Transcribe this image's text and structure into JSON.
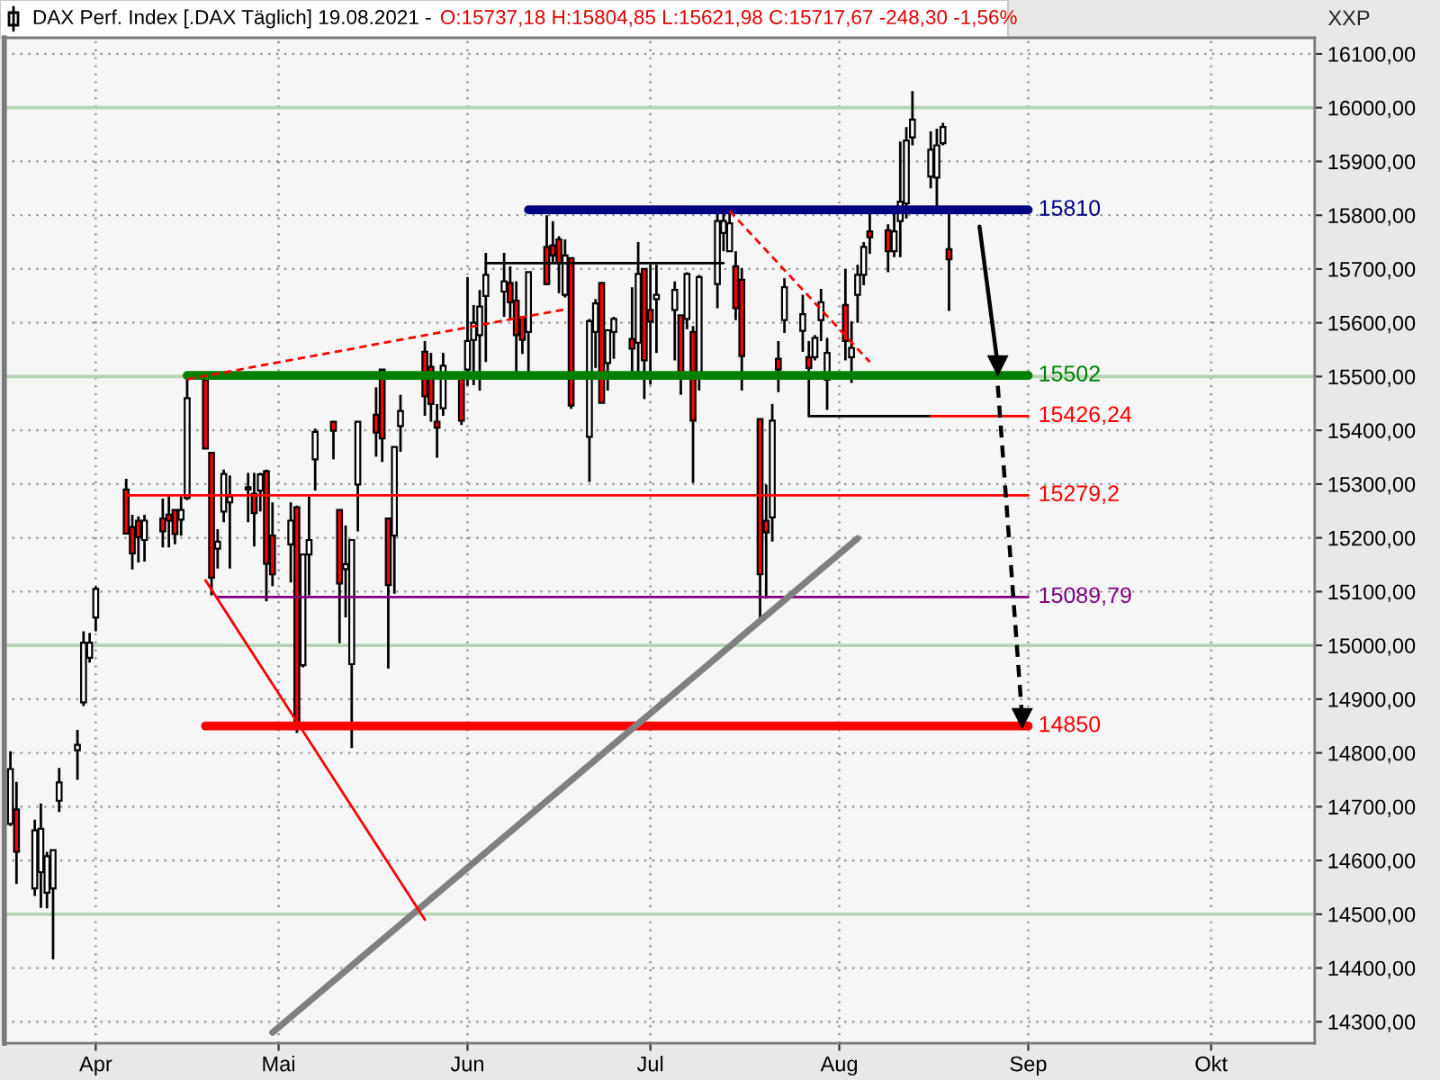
{
  "chart_data": {
    "type": "candlestick",
    "title": "DAX Perf. Index [.DAX Täglich] 19.08.2021 -",
    "subtitle": "O:15737,18 H:15804,85 L:15621,98 C:15717,67 -248,30 -1,56%",
    "ylabel": "XXP",
    "x": [
      "2021-03-18",
      "2021-03-19",
      "2021-03-22",
      "2021-03-23",
      "2021-03-24",
      "2021-03-25",
      "2021-03-26",
      "2021-03-29",
      "2021-03-30",
      "2021-03-31",
      "2021-04-01",
      "2021-04-06",
      "2021-04-07",
      "2021-04-08",
      "2021-04-09",
      "2021-04-12",
      "2021-04-13",
      "2021-04-14",
      "2021-04-15",
      "2021-04-16",
      "2021-04-19",
      "2021-04-20",
      "2021-04-21",
      "2021-04-22",
      "2021-04-23",
      "2021-04-26",
      "2021-04-27",
      "2021-04-28",
      "2021-04-29",
      "2021-04-30",
      "2021-05-03",
      "2021-05-04",
      "2021-05-05",
      "2021-05-06",
      "2021-05-07",
      "2021-05-10",
      "2021-05-11",
      "2021-05-12",
      "2021-05-13",
      "2021-05-14",
      "2021-05-17",
      "2021-05-18",
      "2021-05-19",
      "2021-05-20",
      "2021-05-21",
      "2021-05-25",
      "2021-05-26",
      "2021-05-27",
      "2021-05-28",
      "2021-05-31",
      "2021-06-01",
      "2021-06-02",
      "2021-06-03",
      "2021-06-04",
      "2021-06-07",
      "2021-06-08",
      "2021-06-09",
      "2021-06-10",
      "2021-06-11",
      "2021-06-14",
      "2021-06-15",
      "2021-06-16",
      "2021-06-17",
      "2021-06-18",
      "2021-06-21",
      "2021-06-22",
      "2021-06-23",
      "2021-06-24",
      "2021-06-25",
      "2021-06-28",
      "2021-06-29",
      "2021-06-30",
      "2021-07-01",
      "2021-07-02",
      "2021-07-05",
      "2021-07-06",
      "2021-07-07",
      "2021-07-08",
      "2021-07-09",
      "2021-07-12",
      "2021-07-13",
      "2021-07-14",
      "2021-07-15",
      "2021-07-16",
      "2021-07-19",
      "2021-07-20",
      "2021-07-21",
      "2021-07-22",
      "2021-07-23",
      "2021-07-26",
      "2021-07-27",
      "2021-07-28",
      "2021-07-29",
      "2021-07-30",
      "2021-08-02",
      "2021-08-03",
      "2021-08-04",
      "2021-08-05",
      "2021-08-06",
      "2021-08-09",
      "2021-08-10",
      "2021-08-11",
      "2021-08-12",
      "2021-08-13",
      "2021-08-16",
      "2021-08-17",
      "2021-08-18",
      "2021-08-19"
    ],
    "ohlc": [
      [
        14668,
        14803,
        14664,
        14770
      ],
      [
        14695,
        14746,
        14556,
        14616
      ],
      [
        14548,
        14676,
        14534,
        14656
      ],
      [
        14578,
        14706,
        14512,
        14659
      ],
      [
        14540,
        14616,
        14511,
        14608
      ],
      [
        14548,
        14619,
        14416,
        14619
      ],
      [
        14711,
        14772,
        14690,
        14745
      ],
      [
        14805,
        14843,
        14750,
        14815
      ],
      [
        14894,
        15026,
        14887,
        15005
      ],
      [
        14977,
        15023,
        14968,
        15005
      ],
      [
        15052,
        15110,
        15026,
        15105
      ],
      [
        15290,
        15310,
        15207,
        15208
      ],
      [
        15220,
        15243,
        15141,
        15171
      ],
      [
        15232,
        15240,
        15154,
        15201
      ],
      [
        15196,
        15243,
        15156,
        15232
      ],
      [
        15236,
        15273,
        15182,
        15212
      ],
      [
        15243,
        15277,
        15182,
        15232
      ],
      [
        15252,
        15252,
        15188,
        15207
      ],
      [
        15234,
        15277,
        15204,
        15252
      ],
      [
        15274,
        15502,
        15270,
        15460
      ],
      [
        15494,
        15502,
        15366,
        15366
      ],
      [
        15358,
        15358,
        15093,
        15126
      ],
      [
        15180,
        15216,
        15143,
        15193
      ],
      [
        15249,
        15327,
        15229,
        15319
      ],
      [
        15266,
        15316,
        15143,
        15277
      ],
      [
        15294,
        15321,
        15229,
        15290
      ],
      [
        15282,
        15321,
        15184,
        15246
      ],
      [
        15288,
        15321,
        15249,
        15318
      ],
      [
        15324,
        15327,
        15082,
        15152
      ],
      [
        15204,
        15266,
        15110,
        15132
      ],
      [
        15188,
        15266,
        15117,
        15232
      ],
      [
        15257,
        15260,
        14837,
        14854
      ],
      [
        14963,
        15169,
        14959,
        15169
      ],
      [
        15169,
        15277,
        15093,
        15196
      ],
      [
        15346,
        15403,
        15288,
        15397
      ],
      [
        15416,
        15416,
        15346,
        15399
      ],
      [
        15252,
        15252,
        15004,
        15115
      ],
      [
        15142,
        15223,
        15052,
        15151
      ],
      [
        14965,
        15196,
        14809,
        15196
      ],
      [
        15299,
        15416,
        15212,
        15416
      ],
      [
        15429,
        15480,
        15351,
        15396
      ],
      [
        15513,
        15513,
        15341,
        15385
      ],
      [
        15236,
        15236,
        14957,
        15112
      ],
      [
        15204,
        15369,
        15096,
        15369
      ],
      [
        15408,
        15466,
        15360,
        15436
      ],
      [
        15546,
        15566,
        15427,
        15463
      ],
      [
        15518,
        15544,
        15416,
        15449
      ],
      [
        15416,
        15449,
        15349,
        15405
      ],
      [
        15441,
        15544,
        15427,
        15520
      ],
      [
        15505,
        15505,
        15410,
        15418
      ],
      [
        15513,
        15685,
        15483,
        15566
      ],
      [
        15568,
        15633,
        15484,
        15600
      ],
      [
        15577,
        15661,
        15474,
        15630
      ],
      [
        15650,
        15730,
        15527,
        15689
      ],
      [
        15658,
        15730,
        15611,
        15677
      ],
      [
        15674,
        15705,
        15608,
        15638
      ],
      [
        15641,
        15677,
        15505,
        15577
      ],
      [
        15610,
        15610,
        15542,
        15568
      ],
      [
        15583,
        15694,
        15507,
        15694
      ],
      [
        15741,
        15800,
        15670,
        15672
      ],
      [
        15744,
        15789,
        15711,
        15725
      ],
      [
        15755,
        15761,
        15655,
        15711
      ],
      [
        15652,
        15755,
        15647,
        15725
      ],
      [
        15720,
        15720,
        15440,
        15446
      ],
      [
        15388,
        15607,
        15304,
        15603
      ],
      [
        15583,
        15644,
        15516,
        15636
      ],
      [
        15674,
        15674,
        15451,
        15451
      ],
      [
        15525,
        15588,
        15474,
        15586
      ],
      [
        15583,
        15611,
        15533,
        15607
      ],
      [
        15570,
        15666,
        15507,
        15552
      ],
      [
        15563,
        15750,
        15505,
        15691
      ],
      [
        15700,
        15700,
        15458,
        15530
      ],
      [
        15624,
        15708,
        15485,
        15602
      ],
      [
        15644,
        15708,
        15544,
        15652
      ],
      [
        15624,
        15677,
        15530,
        15661
      ],
      [
        15614,
        15614,
        15466,
        15507
      ],
      [
        15607,
        15694,
        15588,
        15691
      ],
      [
        15583,
        15594,
        15302,
        15418
      ],
      [
        15505,
        15689,
        15474,
        15685
      ],
      [
        15672,
        15811,
        15627,
        15789
      ],
      [
        15767,
        15811,
        15733,
        15789
      ],
      [
        15733,
        15808,
        15733,
        15785
      ],
      [
        15705,
        15733,
        15605,
        15627
      ],
      [
        15680,
        15702,
        15474,
        15538
      ],
      [
        15421,
        15421,
        15043,
        15132
      ],
      [
        15232,
        15299,
        15087,
        15210
      ],
      [
        15238,
        15449,
        15193,
        15418
      ],
      [
        15533,
        15566,
        15471,
        15513
      ],
      [
        15605,
        15683,
        15581,
        15666
      ],
      [
        15585,
        15652,
        15546,
        15616
      ],
      [
        15536,
        15566,
        15426,
        15516
      ],
      [
        15536,
        15577,
        15530,
        15572
      ],
      [
        15605,
        15663,
        15566,
        15638
      ],
      [
        15494,
        15572,
        15438,
        15544
      ],
      [
        15633,
        15700,
        15530,
        15566
      ],
      [
        15536,
        15603,
        15488,
        15553
      ],
      [
        15652,
        15708,
        15600,
        15689
      ],
      [
        15689,
        15750,
        15670,
        15741
      ],
      [
        15770,
        15805,
        15728,
        15759
      ],
      [
        15772,
        15783,
        15694,
        15733
      ],
      [
        15733,
        15803,
        15722,
        15770
      ],
      [
        15789,
        15937,
        15722,
        15825
      ],
      [
        15822,
        15964,
        15794,
        15939
      ],
      [
        15945,
        16031,
        15930,
        15978
      ],
      [
        15872,
        15956,
        15850,
        15922
      ],
      [
        15870,
        15961,
        15814,
        15930
      ],
      [
        15934,
        15972,
        15930,
        15964
      ],
      [
        15737,
        15805,
        15622,
        15718
      ]
    ],
    "series": [
      {
        "type": "line",
        "name": "15810",
        "color": "#000080",
        "x": [
          "2021-06-11",
          "2021-09-01"
        ],
        "values": [
          15810,
          15810
        ]
      },
      {
        "type": "line",
        "name": "15502",
        "color": "#008000",
        "x": [
          "2021-04-16",
          "2021-09-01"
        ],
        "values": [
          15502,
          15502
        ]
      },
      {
        "type": "line",
        "color": "#000000",
        "x": [
          "2021-07-27",
          "2021-08-16"
        ],
        "values": [
          15426.24,
          15426.24
        ]
      },
      {
        "type": "line",
        "name": "15426,24",
        "color": "#ff0000",
        "x": [
          "2021-08-16",
          "2021-09-01"
        ],
        "values": [
          15426.24,
          15426.24
        ]
      },
      {
        "type": "line",
        "name": "15279,2",
        "color": "#ff0000",
        "x": [
          "2021-04-06",
          "2021-09-01"
        ],
        "values": [
          15279.2,
          15279.2
        ]
      },
      {
        "type": "line",
        "name": "15089,79",
        "color": "#800080",
        "x": [
          "2021-04-21",
          "2021-09-01"
        ],
        "values": [
          15089.79,
          15089.79
        ]
      },
      {
        "type": "line",
        "name": "14850",
        "color": "#ff0000",
        "x": [
          "2021-04-19",
          "2021-09-01"
        ],
        "values": [
          14850,
          14850
        ]
      },
      {
        "type": "line",
        "color": "#000000",
        "x": [
          "2021-06-04",
          "2021-07-13"
        ],
        "values": [
          15711,
          15711
        ]
      },
      {
        "type": "line",
        "color": "#808080",
        "x": [
          "2021-04-30",
          "2021-08-04"
        ],
        "values": [
          14280,
          15199
        ]
      },
      {
        "type": "line",
        "color": "#ff0000",
        "line_style": "dashed",
        "x": [
          "2021-04-16",
          "2021-06-17"
        ],
        "values": [
          15495,
          15625
        ]
      },
      {
        "type": "line",
        "color": "#ff0000",
        "line_style": "dashed",
        "x": [
          "2021-07-14",
          "2021-08-06"
        ],
        "values": [
          15808,
          15527
        ]
      },
      {
        "type": "line",
        "color": "#ff0000",
        "x": [
          "2021-04-19",
          "2021-05-25"
        ],
        "values": [
          15121,
          14490
        ]
      },
      {
        "type": "line",
        "color": "#000000",
        "marker": "triangle",
        "x": [
          "2021-08-24",
          "2021-08-27"
        ],
        "values": [
          15779,
          15521
        ]
      },
      {
        "type": "line",
        "color": "#000000",
        "marker": "triangle",
        "line_style": "dashed",
        "x": [
          "2021-08-27",
          "2021-08-31"
        ],
        "values": [
          15483,
          14865
        ]
      }
    ],
    "ref_lines": [
      {
        "axis": "y",
        "value": 14500,
        "color": "#b4d4b4"
      },
      {
        "axis": "y",
        "value": 15000,
        "color": "#b4d4b4"
      },
      {
        "axis": "y",
        "value": 15500,
        "color": "#b4d4b4"
      },
      {
        "axis": "y",
        "value": 16000,
        "color": "#b4d4b4"
      }
    ],
    "xlim": [
      "2021-03-17",
      "2021-10-18"
    ],
    "xticks": [
      {
        "value": "2021-04-01",
        "label": "Apr"
      },
      {
        "value": "2021-05-01",
        "label": "Mai"
      },
      {
        "value": "2021-06-01",
        "label": "Jun"
      },
      {
        "value": "2021-07-01",
        "label": "Jul"
      },
      {
        "value": "2021-08-01",
        "label": "Aug"
      },
      {
        "value": "2021-09-01",
        "label": "Sep"
      },
      {
        "value": "2021-10-01",
        "label": "Okt"
      }
    ],
    "ylim": [
      14260,
      16130
    ],
    "yticks": [
      {
        "value": 14300,
        "label": "14300,00"
      },
      {
        "value": 14400,
        "label": "14400,00"
      },
      {
        "value": 14500,
        "label": "14500,00"
      },
      {
        "value": 14600,
        "label": "14600,00"
      },
      {
        "value": 14700,
        "label": "14700,00"
      },
      {
        "value": 14800,
        "label": "14800,00"
      },
      {
        "value": 14900,
        "label": "14900,00"
      },
      {
        "value": 15000,
        "label": "15000,00"
      },
      {
        "value": 15100,
        "label": "15100,00"
      },
      {
        "value": 15200,
        "label": "15200,00"
      },
      {
        "value": 15300,
        "label": "15300,00"
      },
      {
        "value": 15400,
        "label": "15400,00"
      },
      {
        "value": 15500,
        "label": "15500,00"
      },
      {
        "value": 15600,
        "label": "15600,00"
      },
      {
        "value": 15700,
        "label": "15700,00"
      },
      {
        "value": 15800,
        "label": "15800,00"
      },
      {
        "value": 15900,
        "label": "15900,00"
      },
      {
        "value": 16000,
        "label": "16000,00"
      },
      {
        "value": 16100,
        "label": "16100,00"
      }
    ],
    "grid": true
  }
}
